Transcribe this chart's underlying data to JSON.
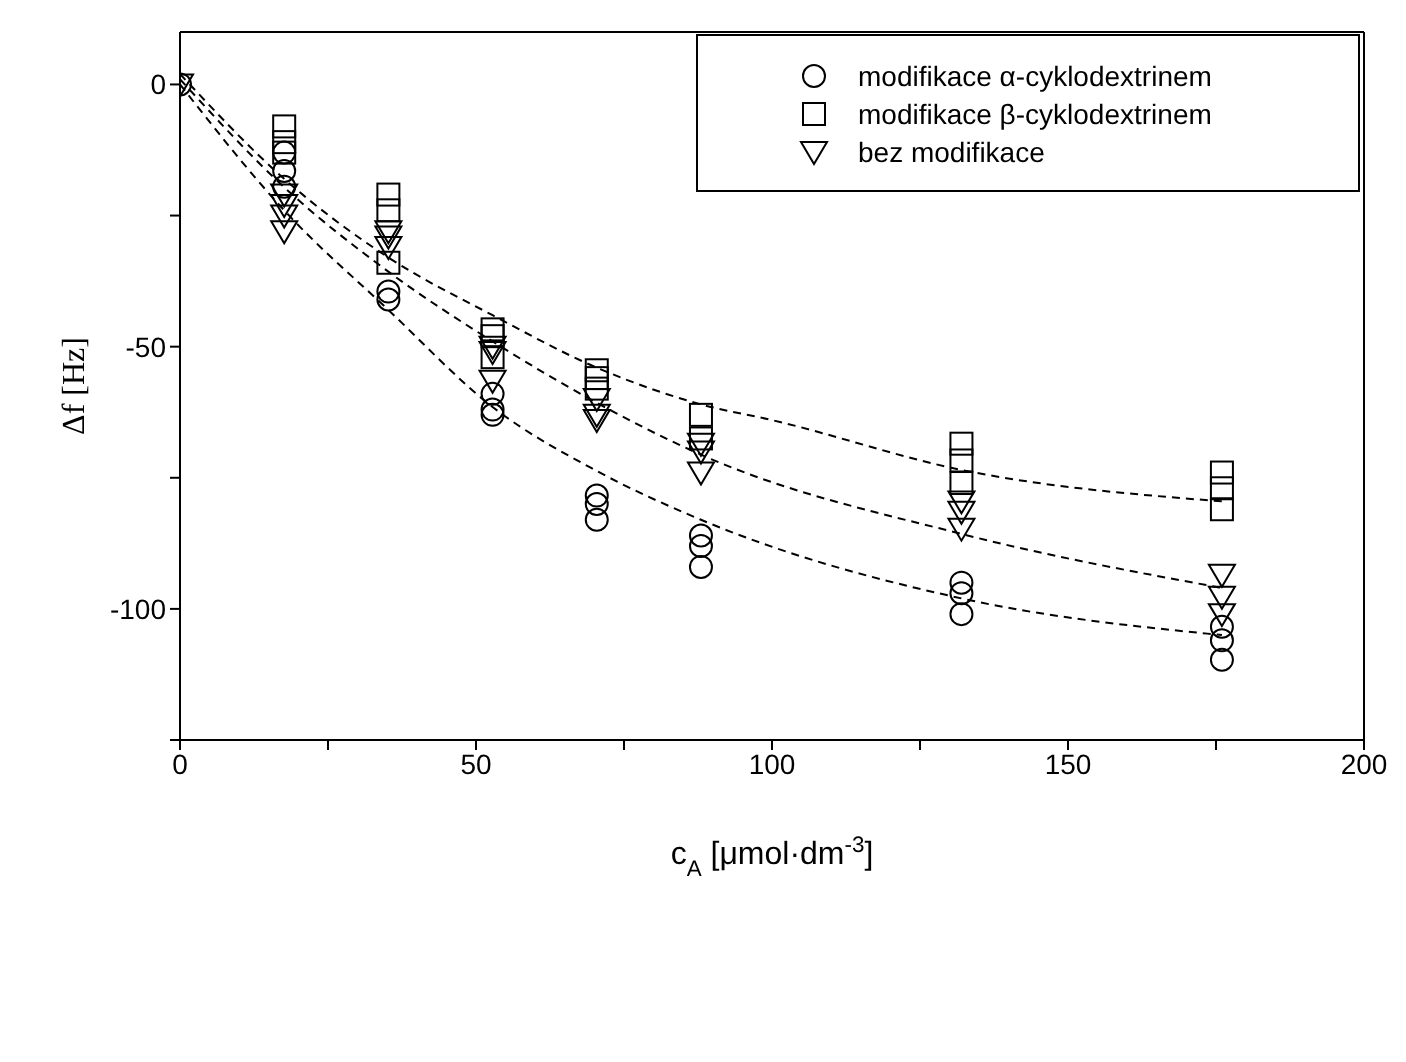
{
  "chart_data": {
    "type": "scatter",
    "xlabel": "c$_{A}$ [μmol·dm$^{-3}$]",
    "ylabel": "Δf [Hz]",
    "xlim": [
      0,
      200
    ],
    "xticks": [
      0,
      {
        "value": 25,
        "label": null
      },
      50,
      {
        "value": 75,
        "label": null
      },
      100,
      {
        "value": 125,
        "label": null
      },
      150,
      {
        "value": 175,
        "label": null
      },
      200
    ],
    "ylim": [
      -125,
      10
    ],
    "yticks": [
      {
        "value": -125,
        "label": null
      },
      -100,
      {
        "value": -75,
        "label": null
      },
      -50,
      {
        "value": -25,
        "label": null
      },
      0
    ],
    "legend": "top right",
    "series": [
      {
        "name": "modifikace α-cyklodextrinem",
        "marker": "circle",
        "color": "#000000",
        "x": [
          0,
          17.6,
          17.6,
          17.6,
          35.2,
          35.2,
          52.8,
          52.8,
          52.8,
          70.4,
          70.4,
          70.4,
          88,
          88,
          88,
          132,
          132,
          132,
          176,
          176,
          176
        ],
        "values": [
          0,
          -13,
          -16.5,
          -19.5,
          -39.5,
          -41,
          -59,
          -62,
          -63,
          -78.4,
          -80,
          -83,
          -86,
          -88,
          -92,
          -95,
          -97,
          -101,
          -103.4,
          -106,
          -109.7
        ]
      },
      {
        "name": "modifikace β-cyklodextrinem",
        "marker": "square",
        "color": "#000000",
        "x": [
          17.6,
          17.6,
          17.6,
          35.2,
          35.2,
          35.2,
          52.8,
          52.8,
          52.8,
          70.4,
          70.4,
          70.4,
          88,
          88,
          132,
          132,
          132,
          176,
          176,
          176
        ],
        "values": [
          -8,
          -11,
          -13,
          -21,
          -24,
          -34,
          -46.7,
          -48,
          -52,
          -54.5,
          -56,
          -58,
          -63,
          -67.5,
          -68.5,
          -71.7,
          -76,
          -74,
          -77,
          -81
        ]
      },
      {
        "name": "bez modifikace",
        "marker": "triangle-down",
        "color": "#000000",
        "x": [
          0,
          17.6,
          17.6,
          17.6,
          17.6,
          35.2,
          35.2,
          35.2,
          52.8,
          52.8,
          52.8,
          70.4,
          70.4,
          70.4,
          88,
          88,
          88,
          132,
          132,
          132,
          176,
          176,
          176
        ],
        "values": [
          0,
          -21,
          -23,
          -25,
          -28,
          -28,
          -29,
          -31,
          -50,
          -51,
          -56.5,
          -60,
          -63,
          -64,
          -68.5,
          -70,
          -74,
          -79.5,
          -81.5,
          -84.7,
          -93.5,
          -97.7,
          -101
        ]
      },
      {
        "type": "line",
        "marker": "none",
        "line_style": "dashed",
        "color": "#000000",
        "x": [
          0,
          17.6,
          35.2,
          52.8,
          70.4,
          88,
          100,
          132,
          176
        ],
        "values": [
          2,
          -18,
          -33,
          -44,
          -54,
          -61,
          -64,
          -73.5,
          -79.5
        ]
      },
      {
        "type": "line",
        "marker": "none",
        "line_style": "dashed",
        "color": "#000000",
        "x": [
          0,
          17.6,
          35.2,
          52.8,
          70.4,
          88,
          132,
          176
        ],
        "values": [
          1,
          -19.6,
          -35.7,
          -49,
          -60.7,
          -70.6,
          -85.7,
          -96
        ]
      },
      {
        "type": "line",
        "marker": "none",
        "line_style": "dashed",
        "color": "#000000",
        "x": [
          0,
          17.6,
          35.2,
          52.8,
          70.4,
          88,
          132,
          176
        ],
        "values": [
          0,
          -24,
          -43,
          -61.5,
          -73.7,
          -83,
          -98,
          -105
        ]
      }
    ]
  }
}
